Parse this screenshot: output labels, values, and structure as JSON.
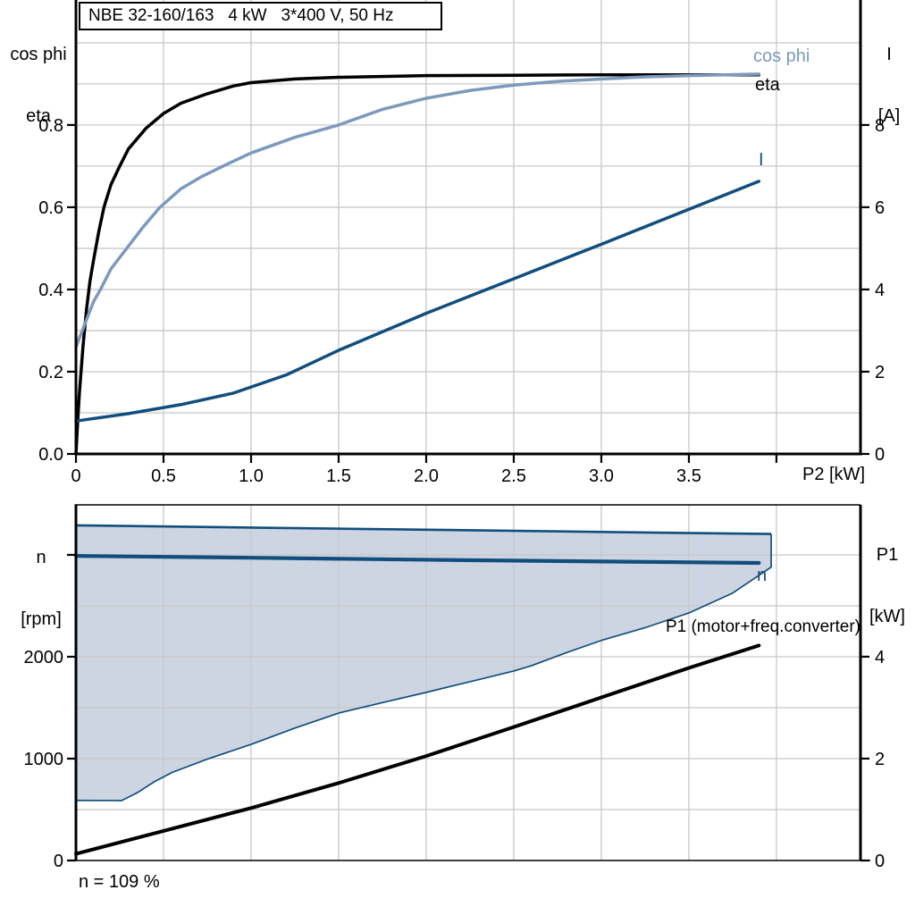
{
  "figure": {
    "title": "NBE 32-160/163   4 kW   3*400 V, 50 Hz",
    "footer": "n = 109 %"
  },
  "colors": {
    "black": "#000000",
    "dark_blue": "#114E7D",
    "light_blue": "#7C9ABC",
    "region_fill": "#CDD5E2",
    "grid": "#C8C8C8",
    "axis": "#000000",
    "background": "#FFFFFF"
  },
  "labels": {
    "top_left": [
      "cos phi",
      "eta"
    ],
    "top_right": [
      "I",
      "[A]"
    ],
    "x_axis": "P2 [kW]",
    "bottom_left": [
      "n",
      "[rpm]"
    ],
    "bottom_right": [
      "P1",
      "[kW]"
    ],
    "footer": "n = 109 %"
  },
  "curve_labels": {
    "cos_phi": "cos phi",
    "eta": "eta",
    "current": "I",
    "speed": "n",
    "power_in": "P1 (motor+freq.converter)"
  },
  "chart_data": [
    {
      "id": "motor-efficiency-plot",
      "type": "line",
      "title": "NBE 32-160/163   4 kW   3*400 V, 50 Hz",
      "xlabel": "P2 [kW]",
      "ylabel_left": "cos phi / eta",
      "ylabel_right": "I [A]",
      "xlim": [
        0,
        4.48
      ],
      "ylim_left": [
        0,
        1.104
      ],
      "ylim_right": [
        0,
        11.04
      ],
      "grid": true,
      "x_grid_step": 0.5,
      "left_grid_step": 0.1,
      "x_ticks": [
        0,
        0.5,
        1.0,
        1.5,
        2.0,
        2.5,
        3.0,
        3.5
      ],
      "x_tick_labels": [
        "0",
        "0.5",
        "1.0",
        "1.5",
        "2.0",
        "2.5",
        "3.0",
        "3.5"
      ],
      "x_unlabeled_ticks": [
        4.0
      ],
      "left_ticks": [
        0,
        0.2,
        0.4,
        0.6,
        0.8
      ],
      "left_tick_labels": [
        "0.0",
        "0.2",
        "0.4",
        "0.6",
        "0.8"
      ],
      "right_ticks": [
        0,
        2,
        4,
        6,
        8
      ],
      "right_tick_labels": [
        "0",
        "2",
        "4",
        "6",
        "8"
      ],
      "series": [
        {
          "name": "eta",
          "axis": "left",
          "color_key": "black",
          "width": 3.5,
          "points": [
            [
              0,
              0
            ],
            [
              0.01,
              0.08
            ],
            [
              0.02,
              0.15
            ],
            [
              0.04,
              0.26
            ],
            [
              0.06,
              0.35
            ],
            [
              0.08,
              0.42
            ],
            [
              0.1,
              0.47
            ],
            [
              0.13,
              0.54
            ],
            [
              0.16,
              0.6
            ],
            [
              0.2,
              0.655
            ],
            [
              0.25,
              0.7
            ],
            [
              0.3,
              0.742
            ],
            [
              0.4,
              0.792
            ],
            [
              0.5,
              0.828
            ],
            [
              0.6,
              0.853
            ],
            [
              0.75,
              0.876
            ],
            [
              0.9,
              0.895
            ],
            [
              1.0,
              0.903
            ],
            [
              1.25,
              0.912
            ],
            [
              1.5,
              0.916
            ],
            [
              2.0,
              0.92
            ],
            [
              2.5,
              0.921
            ],
            [
              3.0,
              0.922
            ],
            [
              3.5,
              0.922
            ],
            [
              3.9,
              0.922
            ]
          ]
        },
        {
          "name": "cos phi",
          "axis": "left",
          "color_key": "light_blue",
          "width": 3.5,
          "points": [
            [
              0,
              0.26
            ],
            [
              0.05,
              0.315
            ],
            [
              0.1,
              0.37
            ],
            [
              0.14,
              0.4
            ],
            [
              0.2,
              0.45
            ],
            [
              0.29,
              0.5
            ],
            [
              0.38,
              0.55
            ],
            [
              0.48,
              0.6
            ],
            [
              0.6,
              0.645
            ],
            [
              0.72,
              0.675
            ],
            [
              0.84,
              0.7
            ],
            [
              1.0,
              0.732
            ],
            [
              1.25,
              0.77
            ],
            [
              1.5,
              0.8
            ],
            [
              1.75,
              0.838
            ],
            [
              2.0,
              0.865
            ],
            [
              2.25,
              0.884
            ],
            [
              2.5,
              0.897
            ],
            [
              2.75,
              0.906
            ],
            [
              3.0,
              0.912
            ],
            [
              3.25,
              0.917
            ],
            [
              3.5,
              0.92
            ],
            [
              3.7,
              0.922
            ],
            [
              3.9,
              0.924
            ]
          ]
        },
        {
          "name": "I",
          "axis": "right",
          "color_key": "dark_blue",
          "width": 3.5,
          "points": [
            [
              0,
              0.8
            ],
            [
              0.3,
              0.98
            ],
            [
              0.6,
              1.2
            ],
            [
              0.9,
              1.48
            ],
            [
              1.2,
              1.92
            ],
            [
              1.5,
              2.52
            ],
            [
              2.0,
              3.42
            ],
            [
              2.5,
              4.26
            ],
            [
              3.0,
              5.1
            ],
            [
              3.5,
              5.95
            ],
            [
              3.9,
              6.63
            ]
          ]
        }
      ]
    },
    {
      "id": "speed-power-plot",
      "type": "line",
      "title": "",
      "xlabel": "",
      "ylabel_left": "n [rpm]",
      "ylabel_right": "P1 [kW]",
      "xlim": [
        0,
        4.48
      ],
      "ylim_left": [
        0,
        3491
      ],
      "ylim_right": [
        0,
        6.98
      ],
      "grid": true,
      "x_grid_step": 0.5,
      "left_grid_step": 500,
      "left_ticks": [
        0,
        1000,
        2000
      ],
      "left_tick_labels": [
        "0",
        "1000",
        "2000"
      ],
      "left_unlabeled_ticks": [
        3000
      ],
      "right_ticks": [
        0,
        2,
        4
      ],
      "right_tick_labels": [
        "0",
        "2",
        "4"
      ],
      "annotation": "n = 109 %",
      "region": {
        "name": "allowed-speed-range",
        "fill_key": "region_fill",
        "edge_key": "dark_blue",
        "upper_width": 2.6,
        "lower_width": 1.7,
        "upper": [
          [
            0,
            3290
          ],
          [
            1.0,
            3268
          ],
          [
            2.0,
            3247
          ],
          [
            3.0,
            3225
          ],
          [
            3.97,
            3205
          ]
        ],
        "lower": [
          [
            0,
            590
          ],
          [
            0.26,
            588
          ],
          [
            0.35,
            665
          ],
          [
            0.45,
            775
          ],
          [
            0.55,
            865
          ],
          [
            0.75,
            995
          ],
          [
            1.0,
            1140
          ],
          [
            1.25,
            1300
          ],
          [
            1.5,
            1447
          ],
          [
            1.75,
            1550
          ],
          [
            2.0,
            1650
          ],
          [
            2.25,
            1755
          ],
          [
            2.5,
            1860
          ],
          [
            2.6,
            1912
          ],
          [
            2.8,
            2040
          ],
          [
            3.0,
            2160
          ],
          [
            3.25,
            2285
          ],
          [
            3.5,
            2430
          ],
          [
            3.75,
            2625
          ],
          [
            3.97,
            2880
          ]
        ]
      },
      "series": [
        {
          "name": "P1 (motor+freq.converter)",
          "axis": "right",
          "color_key": "black",
          "width": 4,
          "points": [
            [
              0,
              0.13
            ],
            [
              0.5,
              0.58
            ],
            [
              1.0,
              1.03
            ],
            [
              1.5,
              1.52
            ],
            [
              2.0,
              2.05
            ],
            [
              2.5,
              2.62
            ],
            [
              3.0,
              3.2
            ],
            [
              3.5,
              3.78
            ],
            [
              3.9,
              4.22
            ]
          ]
        },
        {
          "name": "n",
          "axis": "left",
          "color_key": "dark_blue",
          "width": 4.2,
          "points": [
            [
              0,
              2990
            ],
            [
              1.0,
              2972
            ],
            [
              2.0,
              2952
            ],
            [
              3.0,
              2935
            ],
            [
              3.9,
              2921
            ]
          ]
        }
      ]
    }
  ]
}
